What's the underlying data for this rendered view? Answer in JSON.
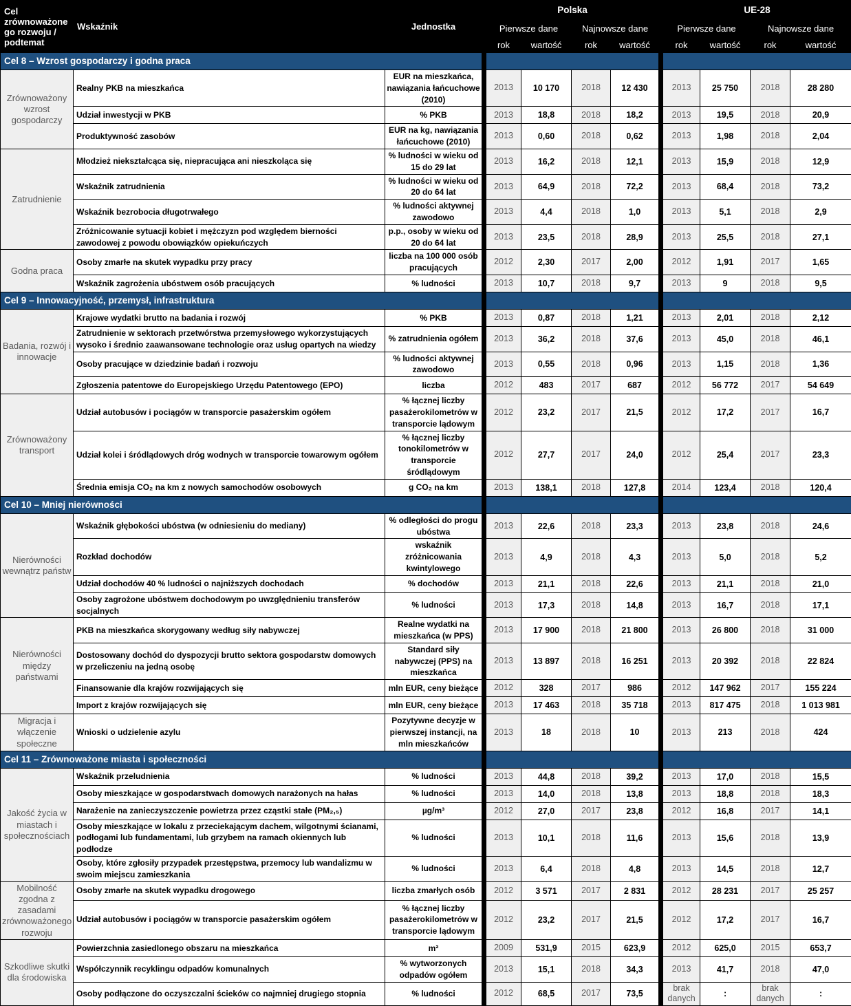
{
  "colors": {
    "section_bar": "#1F5080",
    "header_bg": "#000000",
    "year_cell_bg": "#EFEFEF",
    "muted_text": "#595959"
  },
  "header": {
    "goal_col": "Cel zrównoważone go rozwoju / podtemat",
    "indicator_col": "Wskaźnik",
    "unit_col": "Jednostka",
    "poland": "Polska",
    "eu": "UE-28",
    "first_data": "Pierwsze dane",
    "latest_data": "Najnowsze dane",
    "year": "rok",
    "value": "wartość"
  },
  "sections": [
    {
      "title": "Cel 8 – Wzrost gospodarczy i godna praca",
      "groups": [
        {
          "label": "Zrównoważony wzrost gospodarczy",
          "rows": [
            {
              "indicator": "Realny PKB na mieszkańca",
              "unit": "EUR na mieszkańca, nawiązania łańcuchowe (2010)",
              "values": [
                "2013",
                "10 170",
                "2018",
                "12 430",
                "2013",
                "25 750",
                "2018",
                "28 280"
              ]
            },
            {
              "indicator": "Udział inwestycji w PKB",
              "unit": "% PKB",
              "values": [
                "2013",
                "18,8",
                "2018",
                "18,2",
                "2013",
                "19,5",
                "2018",
                "20,9"
              ]
            },
            {
              "indicator": "Produktywność zasobów",
              "unit": "EUR na kg, nawiązania łańcuchowe (2010)",
              "values": [
                "2013",
                "0,60",
                "2018",
                "0,62",
                "2013",
                "1,98",
                "2018",
                "2,04"
              ]
            }
          ]
        },
        {
          "label": "Zatrudnienie",
          "rows": [
            {
              "indicator": "Młodzież niekształcąca się, niepracująca ani nieszkoląca się",
              "unit": "% ludności w wieku od 15 do 29 lat",
              "values": [
                "2013",
                "16,2",
                "2018",
                "12,1",
                "2013",
                "15,9",
                "2018",
                "12,9"
              ]
            },
            {
              "indicator": "Wskaźnik zatrudnienia",
              "unit": "% ludności w wieku od 20 do 64 lat",
              "values": [
                "2013",
                "64,9",
                "2018",
                "72,2",
                "2013",
                "68,4",
                "2018",
                "73,2"
              ]
            },
            {
              "indicator": "Wskaźnik bezrobocia długotrwałego",
              "unit": "% ludności aktywnej zawodowo",
              "values": [
                "2013",
                "4,4",
                "2018",
                "1,0",
                "2013",
                "5,1",
                "2018",
                "2,9"
              ]
            },
            {
              "indicator": "Zróżnicowanie sytuacji kobiet i mężczyzn pod względem bierności zawodowej z powodu obowiązków opiekuńczych",
              "unit": "p.p., osoby w wieku od 20 do 64 lat",
              "values": [
                "2013",
                "23,5",
                "2018",
                "28,9",
                "2013",
                "25,5",
                "2018",
                "27,1"
              ]
            }
          ]
        },
        {
          "label": "Godna praca",
          "rows": [
            {
              "indicator": "Osoby zmarłe na skutek wypadku przy pracy",
              "unit": "liczba na 100 000 osób pracujących",
              "values": [
                "2012",
                "2,30",
                "2017",
                "2,00",
                "2012",
                "1,91",
                "2017",
                "1,65"
              ]
            },
            {
              "indicator": "Wskaźnik zagrożenia ubóstwem osób pracujących",
              "unit": "% ludności",
              "values": [
                "2013",
                "10,7",
                "2018",
                "9,7",
                "2013",
                "9",
                "2018",
                "9,5"
              ]
            }
          ]
        }
      ]
    },
    {
      "title": "Cel 9 – Innowacyjność, przemysł, infrastruktura",
      "groups": [
        {
          "label": "Badania, rozwój i innowacje",
          "rows": [
            {
              "indicator": "Krajowe wydatki brutto na badania i rozwój",
              "unit": "% PKB",
              "values": [
                "2013",
                "0,87",
                "2018",
                "1,21",
                "2013",
                "2,01",
                "2018",
                "2,12"
              ]
            },
            {
              "indicator": "Zatrudnienie w sektorach przetwórstwa przemysłowego wykorzystujących wysoko i średnio zaawansowane technologie oraz usług opartych na wiedzy",
              "unit": "% zatrudnienia ogółem",
              "values": [
                "2013",
                "36,2",
                "2018",
                "37,6",
                "2013",
                "45,0",
                "2018",
                "46,1"
              ]
            },
            {
              "indicator": "Osoby pracujące w dziedzinie badań i rozwoju",
              "unit": "% ludności aktywnej zawodowo",
              "values": [
                "2013",
                "0,55",
                "2018",
                "0,96",
                "2013",
                "1,15",
                "2018",
                "1,36"
              ]
            },
            {
              "indicator": "Zgłoszenia patentowe do Europejskiego Urzędu Patentowego (EPO)",
              "unit": "liczba",
              "values": [
                "2012",
                "483",
                "2017",
                "687",
                "2012",
                "56 772",
                "2017",
                "54 649"
              ]
            }
          ]
        },
        {
          "label": "Zrównoważony transport",
          "rows": [
            {
              "indicator": "Udział autobusów i pociągów w transporcie pasażerskim ogółem",
              "unit": "% łącznej liczby pasażerokilometrów w transporcie lądowym",
              "values": [
                "2012",
                "23,2",
                "2017",
                "21,5",
                "2012",
                "17,2",
                "2017",
                "16,7"
              ]
            },
            {
              "indicator": "Udział kolei i śródlądowych dróg wodnych w transporcie towarowym ogółem",
              "unit": "% łącznej liczby tonokilometrów w transporcie śródlądowym",
              "values": [
                "2012",
                "27,7",
                "2017",
                "24,0",
                "2012",
                "25,4",
                "2017",
                "23,3"
              ]
            },
            {
              "indicator": "Średnia emisja CO₂ na km z nowych samochodów osobowych",
              "unit": "g CO₂ na km",
              "values": [
                "2013",
                "138,1",
                "2018",
                "127,8",
                "2014",
                "123,4",
                "2018",
                "120,4"
              ]
            }
          ]
        }
      ]
    },
    {
      "title": "Cel 10 – Mniej nierówności",
      "groups": [
        {
          "label": "Nierówności wewnątrz państw",
          "rows": [
            {
              "indicator": "Wskaźnik głębokości ubóstwa (w odniesieniu do mediany)",
              "unit": "% odległości do progu ubóstwa",
              "values": [
                "2013",
                "22,6",
                "2018",
                "23,3",
                "2013",
                "23,8",
                "2018",
                "24,6"
              ]
            },
            {
              "indicator": "Rozkład dochodów",
              "unit": "wskaźnik zróżnicowania kwintylowego",
              "values": [
                "2013",
                "4,9",
                "2018",
                "4,3",
                "2013",
                "5,0",
                "2018",
                "5,2"
              ]
            },
            {
              "indicator": "Udział dochodów 40 % ludności o najniższych dochodach",
              "unit": "% dochodów",
              "values": [
                "2013",
                "21,1",
                "2018",
                "22,6",
                "2013",
                "21,1",
                "2018",
                "21,0"
              ]
            },
            {
              "indicator": "Osoby zagrożone ubóstwem dochodowym po uwzględnieniu transferów socjalnych",
              "unit": "% ludności",
              "values": [
                "2013",
                "17,3",
                "2018",
                "14,8",
                "2013",
                "16,7",
                "2018",
                "17,1"
              ]
            }
          ]
        },
        {
          "label": "Nierówności między państwami",
          "rows": [
            {
              "indicator": "PKB na mieszkańca skorygowany według siły nabywczej",
              "unit": "Realne wydatki na mieszkańca (w PPS)",
              "values": [
                "2013",
                "17 900",
                "2018",
                "21 800",
                "2013",
                "26 800",
                "2018",
                "31 000"
              ]
            },
            {
              "indicator": "Dostosowany dochód do dyspozycji brutto sektora gospodarstw domowych w przeliczeniu na jedną osobę",
              "unit": "Standard siły nabywczej (PPS) na mieszkańca",
              "values": [
                "2013",
                "13 897",
                "2018",
                "16 251",
                "2013",
                "20 392",
                "2018",
                "22 824"
              ]
            },
            {
              "indicator": "Finansowanie dla krajów rozwijających się",
              "unit": "mln EUR, ceny bieżące",
              "values": [
                "2012",
                "328",
                "2017",
                "986",
                "2012",
                "147 962",
                "2017",
                "155 224"
              ]
            },
            {
              "indicator": "Import z krajów rozwijających się",
              "unit": "mln EUR, ceny bieżące",
              "values": [
                "2013",
                "17 463",
                "2018",
                "35 718",
                "2013",
                "817 475",
                "2018",
                "1 013 981"
              ]
            }
          ]
        },
        {
          "label": "Migracja i włączenie społeczne",
          "rows": [
            {
              "indicator": "Wnioski o udzielenie azylu",
              "unit": "Pozytywne decyzje w pierwszej instancji, na mln mieszkańców",
              "values": [
                "2013",
                "18",
                "2018",
                "10",
                "2013",
                "213",
                "2018",
                "424"
              ]
            }
          ]
        }
      ]
    },
    {
      "title": "Cel 11 – Zrównoważone miasta i społeczności",
      "groups": [
        {
          "label": "Jakość życia w miastach i społecznościach",
          "rows": [
            {
              "indicator": "Wskaźnik przeludnienia",
              "unit": "% ludności",
              "values": [
                "2013",
                "44,8",
                "2018",
                "39,2",
                "2013",
                "17,0",
                "2018",
                "15,5"
              ]
            },
            {
              "indicator": "Osoby mieszkające w gospodarstwach domowych narażonych na hałas",
              "unit": "% ludności",
              "values": [
                "2013",
                "14,0",
                "2018",
                "13,8",
                "2013",
                "18,8",
                "2018",
                "18,3"
              ]
            },
            {
              "indicator": "Narażenie na zanieczyszczenie powietrza przez cząstki stałe (PM₂,₅)",
              "unit": "µg/m³",
              "values": [
                "2012",
                "27,0",
                "2017",
                "23,8",
                "2012",
                "16,8",
                "2017",
                "14,1"
              ]
            },
            {
              "indicator": "Osoby mieszkające w lokalu z przeciekającym dachem, wilgotnymi ścianami, podłogami lub fundamentami, lub grzybem na ramach okiennych lub podłodze",
              "unit": "% ludności",
              "values": [
                "2013",
                "10,1",
                "2018",
                "11,6",
                "2013",
                "15,6",
                "2018",
                "13,9"
              ]
            },
            {
              "indicator": "Osoby, które zgłosiły przypadek przestępstwa, przemocy lub wandalizmu w swoim miejscu zamieszkania",
              "unit": "% ludności",
              "values": [
                "2013",
                "6,4",
                "2018",
                "4,8",
                "2013",
                "14,5",
                "2018",
                "12,7"
              ]
            }
          ]
        },
        {
          "label": "Mobilność zgodna z zasadami zrównoważonego rozwoju",
          "rows": [
            {
              "indicator": "Osoby zmarłe na skutek wypadku drogowego",
              "unit": "liczba zmarłych osób",
              "values": [
                "2012",
                "3 571",
                "2017",
                "2 831",
                "2012",
                "28 231",
                "2017",
                "25 257"
              ]
            },
            {
              "indicator": "Udział autobusów i pociągów w transporcie pasażerskim ogółem",
              "unit": "% łącznej liczby pasażerokilometrów w transporcie lądowym",
              "values": [
                "2012",
                "23,2",
                "2017",
                "21,5",
                "2012",
                "17,2",
                "2017",
                "16,7"
              ]
            }
          ]
        },
        {
          "label": "Szkodliwe skutki dla środowiska",
          "rows": [
            {
              "indicator": "Powierzchnia zasiedlonego obszaru na mieszkańca",
              "unit": "m²",
              "values": [
                "2009",
                "531,9",
                "2015",
                "623,9",
                "2012",
                "625,0",
                "2015",
                "653,7"
              ]
            },
            {
              "indicator": "Współczynnik recyklingu odpadów komunalnych",
              "unit": "% wytworzonych odpadów ogółem",
              "values": [
                "2013",
                "15,1",
                "2018",
                "34,3",
                "2013",
                "41,7",
                "2018",
                "47,0"
              ]
            },
            {
              "indicator": "Osoby podłączone do oczyszczalni ścieków co najmniej drugiego stopnia",
              "unit": "% ludności",
              "values": [
                "2012",
                "68,5",
                "2017",
                "73,5",
                "brak danych",
                ":",
                "brak danych",
                ":"
              ]
            }
          ]
        }
      ]
    }
  ]
}
